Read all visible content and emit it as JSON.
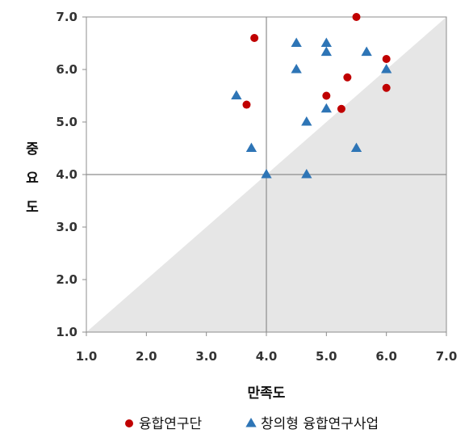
{
  "chart_data": {
    "type": "scatter",
    "xlabel": "만족도",
    "ylabel": "중요도",
    "xlim": [
      1.0,
      7.0
    ],
    "ylim": [
      1.0,
      7.0
    ],
    "xticks": [
      "1.0",
      "2.0",
      "3.0",
      "4.0",
      "5.0",
      "6.0",
      "7.0"
    ],
    "yticks": [
      "1.0",
      "2.0",
      "3.0",
      "4.0",
      "5.0",
      "6.0",
      "7.0"
    ],
    "reference_lines": {
      "x": 4.0,
      "y": 4.0
    },
    "shaded_region": "below diagonal y = x",
    "grid": false,
    "legend_position": "bottom",
    "series": [
      {
        "name": "융합연구단",
        "marker": "circle",
        "color": "#c00000",
        "points": [
          {
            "x": 5.5,
            "y": 7.0
          },
          {
            "x": 3.8,
            "y": 6.6
          },
          {
            "x": 6.0,
            "y": 6.2
          },
          {
            "x": 5.35,
            "y": 5.85
          },
          {
            "x": 6.0,
            "y": 5.65
          },
          {
            "x": 5.0,
            "y": 5.5
          },
          {
            "x": 3.67,
            "y": 5.33
          },
          {
            "x": 5.25,
            "y": 5.25
          }
        ]
      },
      {
        "name": "창의형 융합연구사업",
        "marker": "triangle",
        "color": "#2e75b6",
        "points": [
          {
            "x": 4.5,
            "y": 6.5
          },
          {
            "x": 5.0,
            "y": 6.5
          },
          {
            "x": 5.0,
            "y": 6.33
          },
          {
            "x": 5.67,
            "y": 6.33
          },
          {
            "x": 4.5,
            "y": 6.0
          },
          {
            "x": 6.0,
            "y": 6.0
          },
          {
            "x": 3.5,
            "y": 5.5
          },
          {
            "x": 5.0,
            "y": 5.25
          },
          {
            "x": 4.67,
            "y": 5.0
          },
          {
            "x": 3.75,
            "y": 4.5
          },
          {
            "x": 5.5,
            "y": 4.5
          },
          {
            "x": 4.0,
            "y": 4.0
          },
          {
            "x": 4.67,
            "y": 4.0
          }
        ]
      }
    ]
  }
}
